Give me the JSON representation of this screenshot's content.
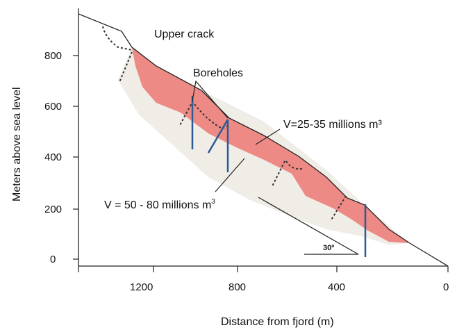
{
  "axes": {
    "y_label": "Meters above sea level",
    "x_label": "Distance from fjord (m)",
    "y_ticks": [
      "0",
      "200",
      "400",
      "600",
      "800"
    ],
    "x_ticks": [
      "1200",
      "800",
      "400",
      "0"
    ]
  },
  "annotations": {
    "upper_crack": "Upper crack",
    "boreholes": "Boreholes",
    "volume_upper": "V=25-35 millions m³",
    "volume_lower_main": "V = 50 - 80 millions m",
    "volume_lower_sup": "3",
    "angle": "30º"
  },
  "colors": {
    "upper_slide": "#ee8a85",
    "lower_slide": "#f0ece6",
    "borehole": "#2b5a95",
    "line": "#222222"
  }
}
